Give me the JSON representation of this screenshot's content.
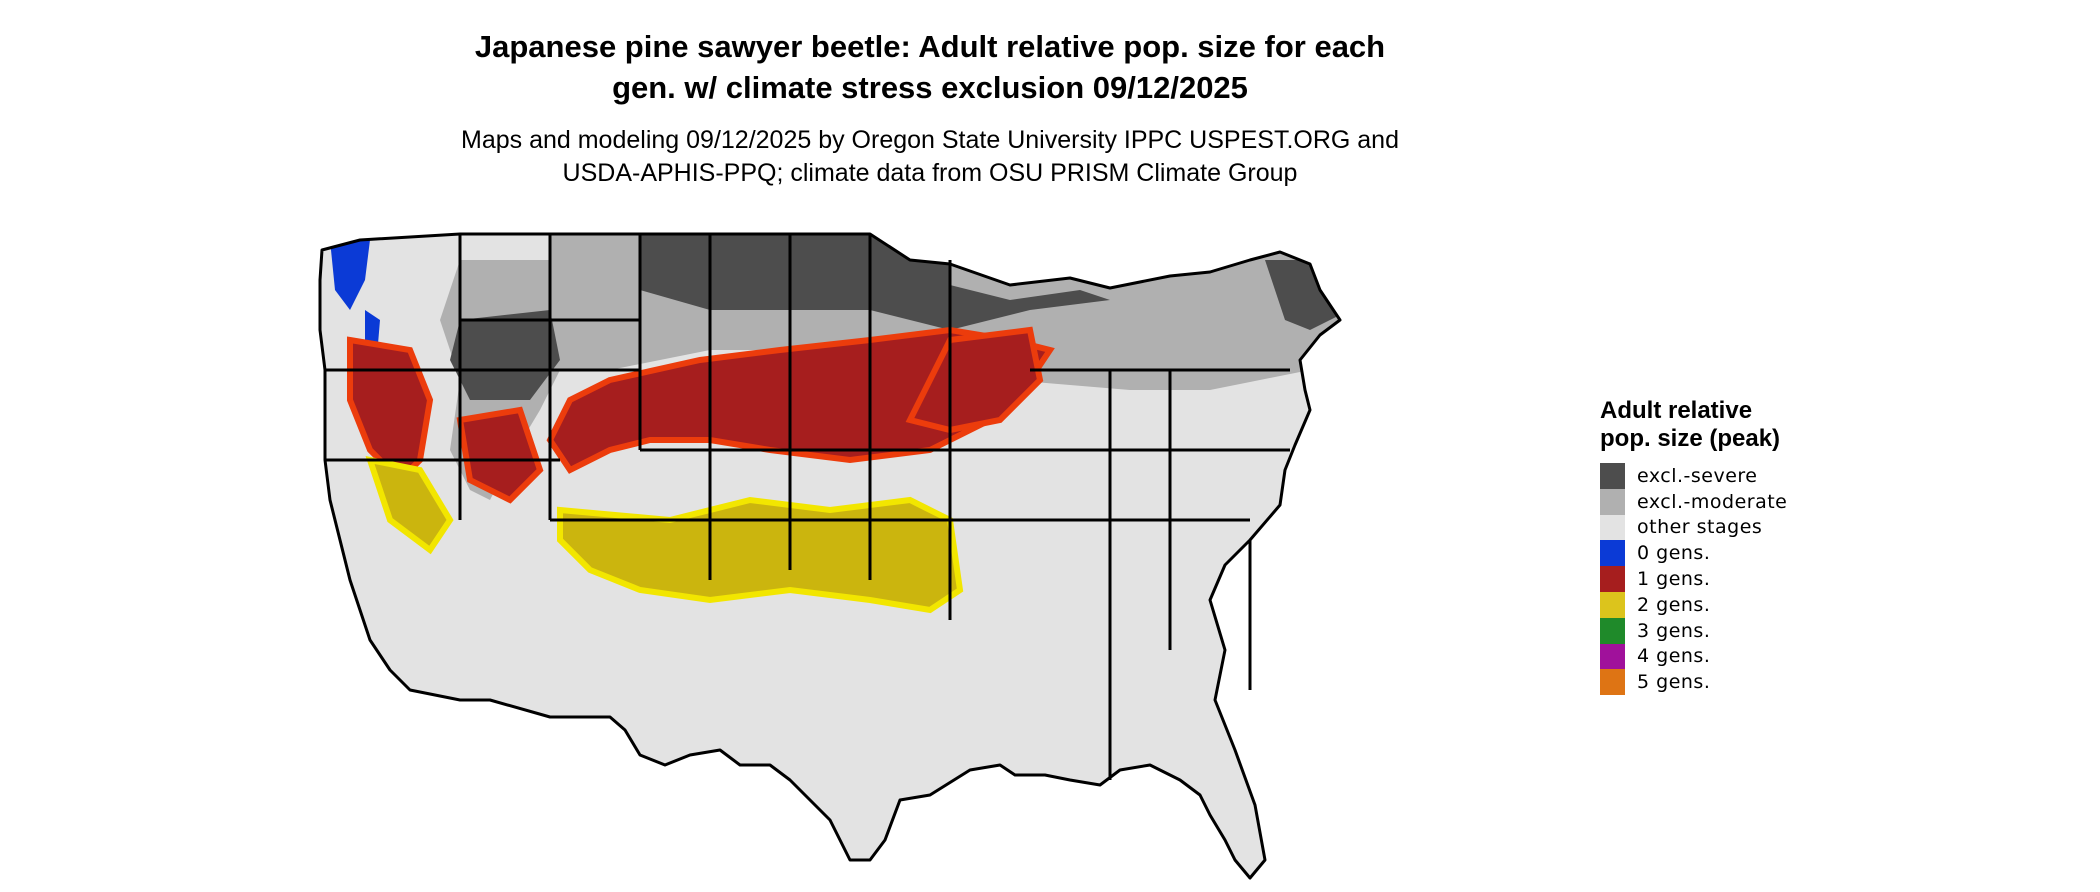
{
  "title_line1": "Japanese pine sawyer beetle: Adult relative pop. size for each",
  "title_line2": "gen. w/ climate stress exclusion 09/12/2025",
  "subtitle_line1": "Maps and modeling 09/12/2025 by Oregon State University IPPC USPEST.ORG and",
  "subtitle_line2": "USDA-APHIS-PPQ; climate data from OSU PRISM Climate Group",
  "legend": {
    "title": "Adult relative pop. size (peak)",
    "items": [
      {
        "label": "excl.-severe",
        "color": "#4d4d4d"
      },
      {
        "label": "excl.-moderate",
        "color": "#b0b0b0"
      },
      {
        "label": "other stages",
        "color": "#e3e3e3"
      },
      {
        "label": "0 gens.",
        "color": "#0b3ad6"
      },
      {
        "label": "1 gens.",
        "color": "#a61e1e"
      },
      {
        "label": "2 gens.",
        "color": "#dcc41c"
      },
      {
        "label": "3 gens.",
        "color": "#1f8a2a"
      },
      {
        "label": "4 gens.",
        "color": "#a0119b"
      },
      {
        "label": "5 gens.",
        "color": "#de7414"
      }
    ]
  },
  "map_colors": {
    "severe": "#4d4d4d",
    "moderate": "#b0b0b0",
    "other": "#e3e3e3",
    "zero": "#0b3ad6",
    "one": "#a61e1e",
    "one_edge": "#ec3c0c",
    "two": "#cbb50e",
    "two_edge": "#f2e600"
  }
}
